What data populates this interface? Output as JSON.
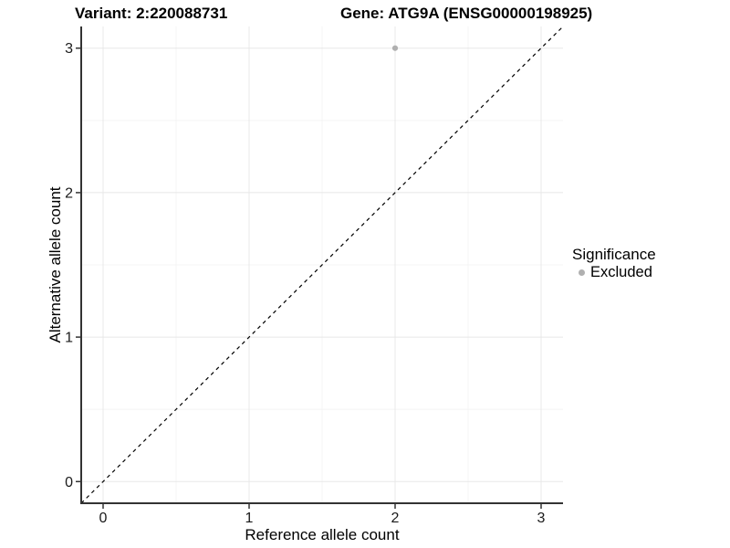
{
  "header": {
    "variant_title": "Variant: 2:220088731",
    "gene_title": "Gene: ATG9A (ENSG00000198925)"
  },
  "axes": {
    "x": {
      "label": "Reference allele count",
      "tick_labels": [
        "0",
        "1",
        "2",
        "3"
      ],
      "tick_values": [
        0,
        1,
        2,
        3
      ],
      "range": [
        -0.15,
        3.15
      ]
    },
    "y": {
      "label": "Alternative allele count",
      "tick_labels": [
        "0",
        "1",
        "2",
        "3"
      ],
      "tick_values": [
        0,
        1,
        2,
        3
      ],
      "range": [
        -0.15,
        3.15
      ]
    }
  },
  "legend": {
    "title": "Significance",
    "entries": [
      {
        "label": "Excluded",
        "marker": "dot",
        "color": "#b0b0b0"
      }
    ]
  },
  "chart_data": {
    "type": "scatter",
    "title": "Variant: 2:220088731 | Gene: ATG9A (ENSG00000198925)",
    "xlabel": "Reference allele count",
    "ylabel": "Alternative allele count",
    "xlim": [
      -0.15,
      3.15
    ],
    "ylim": [
      -0.15,
      3.15
    ],
    "series": [
      {
        "name": "Excluded",
        "color": "#b0b0b0",
        "points": [
          {
            "x": 2,
            "y": 3
          }
        ]
      }
    ],
    "reference_line": {
      "kind": "identity",
      "slope": 1,
      "intercept": 0,
      "style": "dashed",
      "color": "#000000"
    },
    "grid": {
      "major": [
        0,
        1,
        2,
        3
      ],
      "minor": [
        0.5,
        1.5,
        2.5
      ],
      "major_color": "#e8e8e8",
      "minor_color": "#f4f4f4"
    },
    "legend_position": "right",
    "legend_title": "Significance"
  },
  "colors": {
    "axis_line": "#333333",
    "tick_text": "#1a1a1a",
    "title_text": "#000000",
    "point": "#b0b0b0",
    "background": "#ffffff"
  }
}
